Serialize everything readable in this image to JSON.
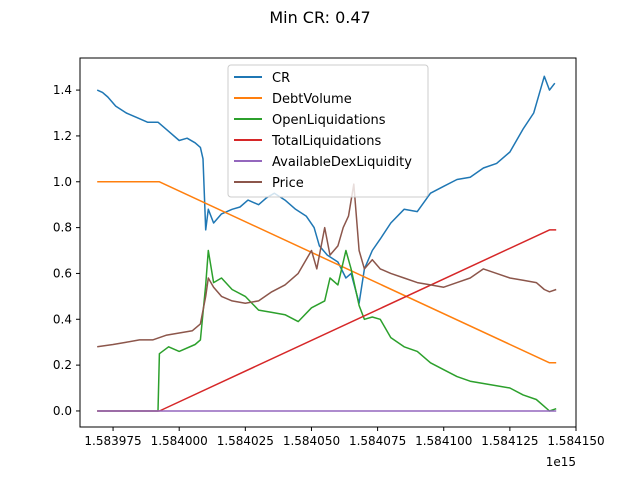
{
  "figure": {
    "title": "Min CR: 0.47"
  },
  "chart_data": {
    "type": "line",
    "title": "Min CR: 0.47",
    "xlabel": "",
    "ylabel": "",
    "x_offset_label": "1e15",
    "xlim": [
      1.5839625,
      1.58415
    ],
    "ylim": [
      -0.07,
      1.54
    ],
    "x_ticks": [
      1.583975,
      1.584,
      1.584025,
      1.58405,
      1.584075,
      1.5841,
      1.584125,
      1.58415
    ],
    "x_tick_labels": [
      "1.583975",
      "1.584000",
      "1.584025",
      "1.584050",
      "1.584075",
      "1.584100",
      "1.584125",
      "1.584150"
    ],
    "y_ticks": [
      0.0,
      0.2,
      0.4,
      0.6,
      0.8,
      1.0,
      1.2,
      1.4
    ],
    "y_tick_labels": [
      "0.0",
      "0.2",
      "0.4",
      "0.6",
      "0.8",
      "1.0",
      "1.2",
      "1.4"
    ],
    "grid": false,
    "legend_position": "upper-center",
    "series": [
      {
        "name": "CR",
        "color": "#1f77b4",
        "x": [
          1.583969,
          1.583971,
          1.583973,
          1.583976,
          1.58398,
          1.583984,
          1.583988,
          1.583992,
          1.583996,
          1.584,
          1.584003,
          1.584006,
          1.584008,
          1.584009,
          1.58401,
          1.584011,
          1.584013,
          1.584016,
          1.58402,
          1.584023,
          1.584026,
          1.58403,
          1.584033,
          1.584036,
          1.58404,
          1.584044,
          1.584048,
          1.584051,
          1.584053,
          1.584056,
          1.58406,
          1.584063,
          1.584065,
          1.584068,
          1.58407,
          1.584073,
          1.584076,
          1.58408,
          1.584085,
          1.58409,
          1.584095,
          1.5841,
          1.584105,
          1.58411,
          1.584115,
          1.58412,
          1.584125,
          1.58413,
          1.584134,
          1.584136,
          1.584138,
          1.58414,
          1.584142
        ],
        "values": [
          1.4,
          1.39,
          1.37,
          1.33,
          1.3,
          1.28,
          1.26,
          1.26,
          1.22,
          1.18,
          1.19,
          1.17,
          1.15,
          1.1,
          0.79,
          0.88,
          0.82,
          0.86,
          0.88,
          0.89,
          0.92,
          0.9,
          0.93,
          0.95,
          0.92,
          0.88,
          0.85,
          0.8,
          0.72,
          0.68,
          0.65,
          0.58,
          0.6,
          0.47,
          0.62,
          0.7,
          0.75,
          0.82,
          0.88,
          0.87,
          0.95,
          0.98,
          1.01,
          1.02,
          1.06,
          1.08,
          1.13,
          1.23,
          1.3,
          1.38,
          1.46,
          1.4,
          1.43
        ]
      },
      {
        "name": "DebtVolume",
        "color": "#ff7f0e",
        "x": [
          1.583969,
          1.5839925,
          1.58414,
          1.5841425
        ],
        "values": [
          1.0,
          1.0,
          0.21,
          0.21
        ]
      },
      {
        "name": "OpenLiquidations",
        "color": "#2ca02c",
        "x": [
          1.583969,
          1.583992,
          1.5839925,
          1.583996,
          1.584,
          1.584006,
          1.584008,
          1.58401,
          1.584011,
          1.584013,
          1.584016,
          1.58402,
          1.584025,
          1.58403,
          1.584035,
          1.58404,
          1.584045,
          1.58405,
          1.584055,
          1.584057,
          1.58406,
          1.584063,
          1.584065,
          1.584068,
          1.58407,
          1.584073,
          1.584076,
          1.58408,
          1.584085,
          1.58409,
          1.584095,
          1.5841,
          1.584105,
          1.58411,
          1.584115,
          1.58412,
          1.584125,
          1.58413,
          1.584135,
          1.584138,
          1.58414,
          1.5841425
        ],
        "values": [
          0.0,
          0.0,
          0.25,
          0.28,
          0.26,
          0.29,
          0.31,
          0.55,
          0.7,
          0.56,
          0.58,
          0.53,
          0.5,
          0.44,
          0.43,
          0.42,
          0.39,
          0.45,
          0.48,
          0.58,
          0.55,
          0.7,
          0.62,
          0.46,
          0.4,
          0.41,
          0.4,
          0.32,
          0.28,
          0.26,
          0.21,
          0.18,
          0.15,
          0.13,
          0.12,
          0.11,
          0.1,
          0.07,
          0.05,
          0.02,
          0.0,
          0.01
        ]
      },
      {
        "name": "TotalLiquidations",
        "color": "#d62728",
        "x": [
          1.583969,
          1.5839925,
          1.58414,
          1.5841425
        ],
        "values": [
          0.0,
          0.0,
          0.79,
          0.79
        ]
      },
      {
        "name": "AvailableDexLiquidity",
        "color": "#9467bd",
        "x": [
          1.583969,
          1.5841425
        ],
        "values": [
          0.0,
          0.0
        ]
      },
      {
        "name": "Price",
        "color": "#8c564b",
        "x": [
          1.583969,
          1.583975,
          1.58398,
          1.583985,
          1.58399,
          1.583995,
          1.584,
          1.584005,
          1.584008,
          1.58401,
          1.584011,
          1.584013,
          1.584016,
          1.58402,
          1.584025,
          1.58403,
          1.584035,
          1.58404,
          1.584045,
          1.58405,
          1.584052,
          1.584055,
          1.584057,
          1.58406,
          1.584062,
          1.584064,
          1.584066,
          1.584068,
          1.58407,
          1.584073,
          1.584076,
          1.58408,
          1.584085,
          1.58409,
          1.584095,
          1.5841,
          1.584105,
          1.58411,
          1.584115,
          1.58412,
          1.584125,
          1.58413,
          1.584135,
          1.584138,
          1.58414,
          1.5841425
        ],
        "values": [
          0.28,
          0.29,
          0.3,
          0.31,
          0.31,
          0.33,
          0.34,
          0.35,
          0.38,
          0.5,
          0.58,
          0.54,
          0.5,
          0.48,
          0.47,
          0.48,
          0.52,
          0.55,
          0.6,
          0.7,
          0.62,
          0.8,
          0.68,
          0.72,
          0.8,
          0.85,
          0.99,
          0.7,
          0.62,
          0.66,
          0.62,
          0.6,
          0.58,
          0.56,
          0.55,
          0.54,
          0.56,
          0.58,
          0.62,
          0.6,
          0.58,
          0.57,
          0.56,
          0.53,
          0.52,
          0.53
        ]
      }
    ]
  }
}
